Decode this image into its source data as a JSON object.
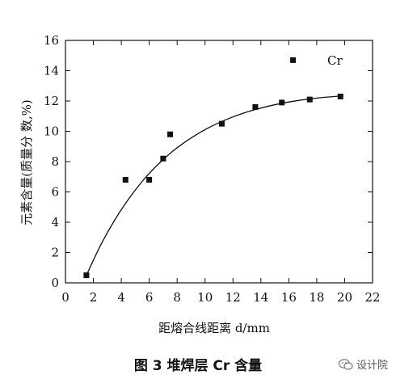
{
  "chart_data": {
    "type": "scatter",
    "xlabel": "距熔合线距离 d/mm",
    "ylabel": "元素含量(质量分 数,%)",
    "xlim": [
      0,
      22
    ],
    "ylim": [
      0,
      16
    ],
    "xticks": [
      0,
      2,
      4,
      6,
      8,
      10,
      12,
      14,
      16,
      18,
      20,
      22
    ],
    "yticks": [
      0,
      2,
      4,
      6,
      8,
      10,
      12,
      14,
      16
    ],
    "legend_position": "top-right",
    "series": [
      {
        "name": "Cr",
        "marker": "square",
        "points": [
          {
            "x": 1.5,
            "y": 0.5
          },
          {
            "x": 4.3,
            "y": 6.8
          },
          {
            "x": 6.0,
            "y": 6.8
          },
          {
            "x": 7.0,
            "y": 8.2
          },
          {
            "x": 7.5,
            "y": 9.8
          },
          {
            "x": 11.2,
            "y": 10.5
          },
          {
            "x": 13.6,
            "y": 11.6
          },
          {
            "x": 15.5,
            "y": 11.9
          },
          {
            "x": 16.3,
            "y": 14.7
          },
          {
            "x": 17.5,
            "y": 12.1
          },
          {
            "x": 19.7,
            "y": 12.3
          }
        ]
      }
    ],
    "fit_curve": {
      "x": [
        1.5,
        2.5,
        3.5,
        4.5,
        5.5,
        6.5,
        7.5,
        8.5,
        9.5,
        10.5,
        11.5,
        12.5,
        13.5,
        14.5,
        15.5,
        16.5,
        17.5,
        18.5,
        19.7
      ],
      "y": [
        0.5,
        2.45,
        4.1,
        5.5,
        6.7,
        7.7,
        8.55,
        9.25,
        9.85,
        10.35,
        10.77,
        11.12,
        11.41,
        11.65,
        11.85,
        12.01,
        12.14,
        12.24,
        12.33
      ]
    },
    "grid": false
  },
  "caption": "图 3  堆焊层 Cr 含量",
  "watermark": "设计院",
  "colors": {
    "ink": "#111111",
    "background": "#ffffff"
  },
  "icons": {
    "watermark": "wechat-logo-icon"
  }
}
